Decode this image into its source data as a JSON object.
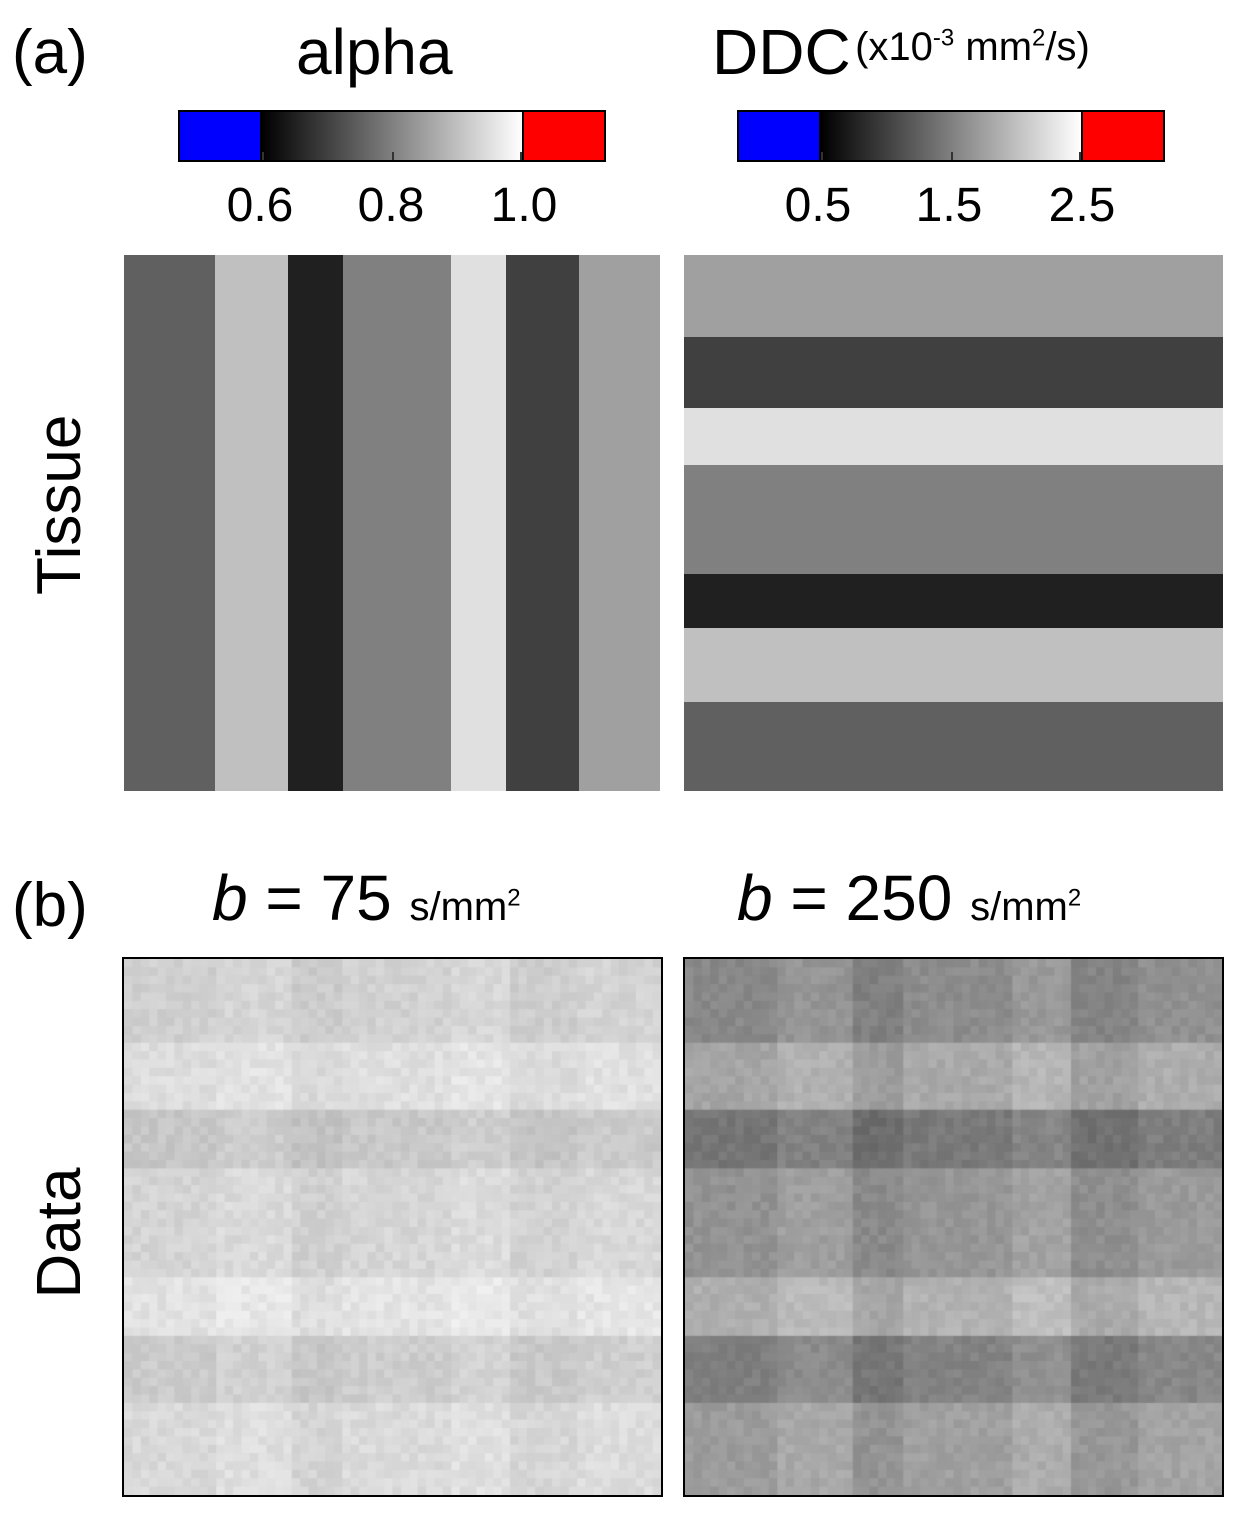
{
  "panel_a": {
    "label": "(a)",
    "row_label": "Tissue",
    "alpha": {
      "title": "alpha",
      "ticks": [
        "0.6",
        "0.8",
        "1.0"
      ],
      "stripe_grays": [
        "#606060",
        "#c0c0c0",
        "#202020",
        "#808080",
        "#e0e0e0",
        "#404040",
        "#a0a0a0"
      ]
    },
    "ddc": {
      "title": "DDC",
      "unit_prefix": "(x10",
      "unit_exp": "-3",
      "unit_mid": " mm",
      "unit_exp2": "2",
      "unit_suffix": "/s)",
      "ticks": [
        "0.5",
        "1.5",
        "2.5"
      ],
      "stripe_grays": [
        "#a0a0a0",
        "#404040",
        "#e0e0e0",
        "#808080",
        "#202020",
        "#c0c0c0",
        "#606060"
      ]
    },
    "colorbar_colors": {
      "under": "#0000ff",
      "over": "#ff0000"
    }
  },
  "panel_b": {
    "label": "(b)",
    "row_label": "Data",
    "images": [
      {
        "b_symbol": "b",
        "b_value": "= 75",
        "unit": "s/mm",
        "unit_exp": "2",
        "base_gray": 205
      },
      {
        "b_symbol": "b",
        "b_value": "= 250",
        "unit": "s/mm",
        "unit_exp": "2",
        "base_gray": 150
      }
    ]
  }
}
